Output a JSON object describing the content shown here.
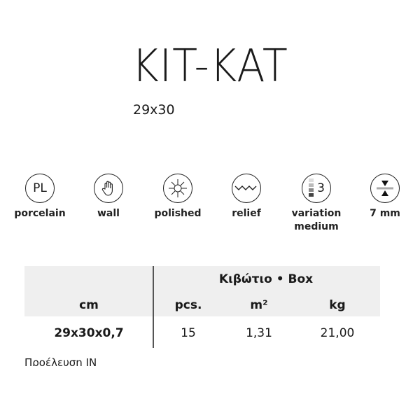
{
  "product": {
    "title": "KIT-KAT",
    "size": "29x30"
  },
  "features": [
    {
      "icon": "porcelain-pl-icon",
      "icon_text": "PL",
      "label": "porcelain"
    },
    {
      "icon": "hand-wall-icon",
      "label": "wall"
    },
    {
      "icon": "sun-polished-icon",
      "label": "polished"
    },
    {
      "icon": "wave-relief-icon",
      "label": "relief"
    },
    {
      "icon": "variation-scale-icon",
      "icon_text": "3",
      "label": "variation medium"
    },
    {
      "icon": "thickness-icon",
      "label": "7 mm"
    }
  ],
  "table": {
    "group_header": "Κιβώτιο • Box",
    "headers": [
      "cm",
      "pcs.",
      "m²",
      "kg"
    ],
    "row": [
      "29x30x0,7",
      "15",
      "1,31",
      "21,00"
    ]
  },
  "footer": "Προέλευση IN"
}
